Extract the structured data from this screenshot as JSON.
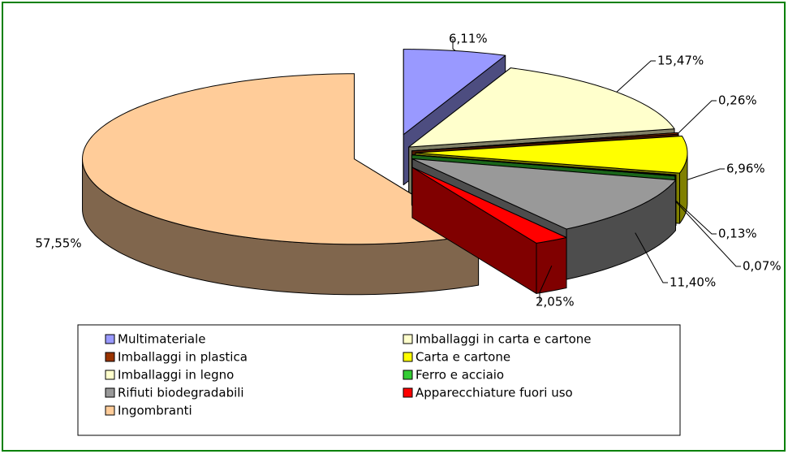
{
  "chart_data": {
    "type": "pie",
    "categories": [
      "Multimateriale",
      "Imballaggi in carta e cartone",
      "Imballaggi in plastica",
      "Carta e cartone",
      "Imballaggi in legno",
      "Ferro e acciaio",
      "Rifiuti biodegradabili",
      "Apparecchiature fuori uso",
      "Ingombranti"
    ],
    "values": [
      6.11,
      15.47,
      0.26,
      6.96,
      0.13,
      0.07,
      11.4,
      2.05,
      57.55
    ],
    "value_labels": [
      "6,11%",
      "15,47%",
      "0,26%",
      "6,96%",
      "0,13%",
      "0,07%",
      "11,40%",
      "2,05%",
      "57,55%"
    ],
    "colors": [
      "#9999ff",
      "#ffffcc",
      "#993300",
      "#ffff00",
      "#ffffcc",
      "#33cc33",
      "#999999",
      "#ff0000",
      "#ffcc99"
    ]
  }
}
